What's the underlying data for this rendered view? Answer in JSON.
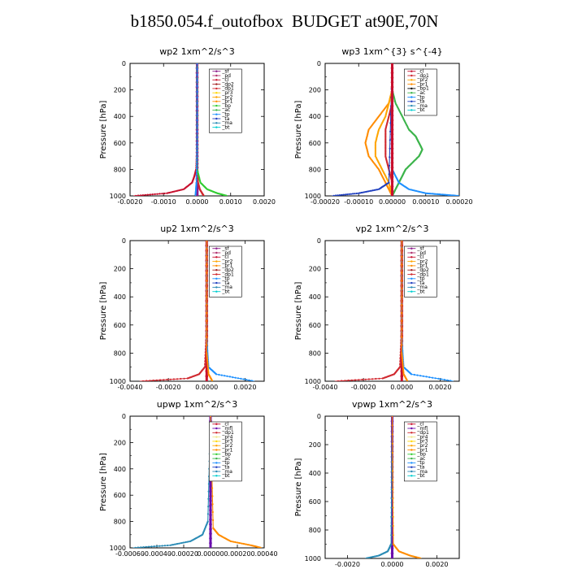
{
  "title": "b1850.054.f_outofbox  BUDGET at90E,70N",
  "colors": {
    "_sf": "#8b1a8b",
    "_pd": "#b0306e",
    "_cl": "#c8102e",
    "_dp1": "#d0282f",
    "_dp2": "#a32020",
    "_pr1": "#ff8c00",
    "_pr2": "#ffa500",
    "_pr3": "#ffd700",
    "_pr4": "#f0e68c",
    "_bp": "#32cd32",
    "_ac": "#3cb44b",
    "_tp": "#1e90ff",
    "_ta": "#1f3fbf",
    "_ma": "#2a8bb5",
    "_bt": "#00ced1",
    "_mfl": "#6a0dad"
  },
  "chart_data": [
    {
      "type": "line",
      "title": "wp2   1xm^2/s^3",
      "ylabel": "Pressure  [hPa]",
      "xlim": [
        -0.002,
        0.002
      ],
      "ylim": [
        1000,
        0
      ],
      "xticks": [
        -0.002,
        -0.001,
        0,
        0.001,
        0.002
      ],
      "xtick_labels": [
        "-0.0020",
        "-0.0010",
        "0.0000",
        "0.0010",
        "0.0020"
      ],
      "yticks": [
        0,
        200,
        400,
        600,
        800,
        1000
      ],
      "ytick_labels": [
        "0",
        "200",
        "400",
        "600",
        "800",
        "1000"
      ],
      "legend": [
        "_sf",
        "_pd",
        "_cl",
        "_dp2",
        "_dp1",
        "_pr3",
        "_pr2",
        "_pr1",
        "_bp",
        "_ac",
        "_tp",
        "_ta",
        "_ma",
        "_bt"
      ],
      "series": [
        {
          "name": "_sf",
          "p": [
            0,
            500,
            900,
            1000
          ],
          "x": [
            0,
            0,
            0,
            0
          ]
        },
        {
          "name": "_cl",
          "p": [
            0,
            200,
            400,
            600,
            800,
            850,
            900,
            950,
            980,
            1000
          ],
          "x": [
            0,
            0,
            0,
            0,
            -3e-05,
            -8e-05,
            -0.00015,
            -0.0004,
            -0.0009,
            -0.0019
          ]
        },
        {
          "name": "_dp1",
          "p": [
            0,
            400,
            800,
            900,
            950,
            980,
            1000
          ],
          "x": [
            0,
            0,
            0,
            3e-05,
            8e-05,
            0.00015,
            0.0002
          ]
        },
        {
          "name": "_bp",
          "p": [
            0,
            400,
            800,
            900,
            950,
            980,
            1000
          ],
          "x": [
            0,
            0,
            0,
            0.0001,
            0.0003,
            0.0006,
            0.0009
          ]
        },
        {
          "name": "_tp",
          "p": [
            0,
            600,
            900,
            1000
          ],
          "x": [
            0,
            0,
            -2e-05,
            -5e-05
          ]
        }
      ]
    },
    {
      "type": "line",
      "title": "wp3   1xm^{3} s^{-4}",
      "ylabel": "Pressure  [hPa]",
      "xlim": [
        -0.0002,
        0.0002
      ],
      "ylim": [
        1000,
        0
      ],
      "xticks": [
        -0.0002,
        -0.0001,
        0,
        0.0001,
        0.0002
      ],
      "xtick_labels": [
        "-0.00020",
        "-0.00010",
        "0.00000",
        "0.00010",
        "0.00020"
      ],
      "yticks": [
        0,
        200,
        400,
        600,
        800,
        1000
      ],
      "ytick_labels": [
        "0",
        "200",
        "400",
        "600",
        "800",
        "1000"
      ],
      "legend": [
        "_cl",
        "_dp1",
        "_pr2",
        "_pr1",
        "_bp1",
        "_ac",
        "_tp",
        "_ta",
        "_ma",
        "_bt"
      ],
      "series": [
        {
          "name": "_pr1",
          "p": [
            0,
            200,
            300,
            400,
            500,
            600,
            700,
            800,
            900,
            950,
            1000
          ],
          "x": [
            0,
            0,
            -1e-05,
            -4e-05,
            -7e-05,
            -8e-05,
            -7e-05,
            -4e-05,
            -2e-05,
            -1e-05,
            0
          ]
        },
        {
          "name": "_pr2",
          "p": [
            0,
            200,
            300,
            400,
            500,
            600,
            700,
            800,
            900,
            1000
          ],
          "x": [
            0,
            0,
            -1e-05,
            -2e-05,
            -4e-05,
            -5e-05,
            -5e-05,
            -3e-05,
            -1e-05,
            0
          ]
        },
        {
          "name": "_ac",
          "p": [
            0,
            200,
            300,
            400,
            500,
            550,
            600,
            650,
            700,
            750,
            800,
            850,
            900,
            950,
            1000
          ],
          "x": [
            0,
            0,
            1e-05,
            3e-05,
            5e-05,
            7e-05,
            8e-05,
            9e-05,
            8e-05,
            6e-05,
            4e-05,
            3e-05,
            2e-05,
            1e-05,
            0
          ]
        },
        {
          "name": "_dp1",
          "p": [
            0,
            300,
            400,
            500,
            600,
            700,
            800,
            900,
            1000
          ],
          "x": [
            0,
            0,
            -1e-05,
            -2e-05,
            -2e-05,
            -2e-05,
            -1e-05,
            0,
            0
          ]
        },
        {
          "name": "_tp",
          "p": [
            0,
            800,
            900,
            950,
            980,
            990,
            1000
          ],
          "x": [
            0,
            0,
            2e-05,
            5e-05,
            0.0001,
            0.00015,
            0.0002
          ]
        },
        {
          "name": "_ta",
          "p": [
            0,
            900,
            950,
            980,
            1000
          ],
          "x": [
            0,
            -1e-05,
            -4e-05,
            -0.0001,
            -0.00018
          ]
        },
        {
          "name": "_cl",
          "p": [
            0,
            500,
            1000
          ],
          "x": [
            0,
            0,
            0
          ]
        }
      ]
    },
    {
      "type": "line",
      "title": "up2   1xm^2/s^3",
      "ylabel": "Pressure  [hPa]",
      "xlim": [
        -0.004,
        0.003
      ],
      "ylim": [
        1000,
        0
      ],
      "xticks": [
        -0.004,
        -0.002,
        0,
        0.002
      ],
      "xtick_labels": [
        "-0.0040",
        "-0.0020",
        "0.0000",
        "0.0020"
      ],
      "yticks": [
        0,
        200,
        400,
        600,
        800,
        1000
      ],
      "ytick_labels": [
        "0",
        "200",
        "400",
        "600",
        "800",
        "1000"
      ],
      "legend": [
        "_sf",
        "_pd",
        "_cl",
        "_pr2",
        "_pr1",
        "_dp2",
        "_dp1",
        "_tp",
        "_ta",
        "_ma",
        "_bt"
      ],
      "series": [
        {
          "name": "_cl",
          "p": [
            0,
            500,
            1000
          ],
          "x": [
            0,
            0,
            0
          ]
        },
        {
          "name": "_dp1",
          "p": [
            0,
            600,
            900,
            950,
            980,
            1000
          ],
          "x": [
            0,
            0,
            -0.0001,
            -0.0004,
            -0.001,
            -0.0035
          ]
        },
        {
          "name": "_tp",
          "p": [
            0,
            700,
            900,
            950,
            1000
          ],
          "x": [
            0,
            0,
            0.0001,
            0.0005,
            0.0025
          ]
        },
        {
          "name": "_pr1",
          "p": [
            0,
            800,
            950,
            1000
          ],
          "x": [
            0,
            0,
            0.0001,
            0.0003
          ]
        }
      ]
    },
    {
      "type": "line",
      "title": "vp2   1xm^2/s^3",
      "ylabel": "Pressure  [hPa]",
      "xlim": [
        -0.004,
        0.003
      ],
      "ylim": [
        1000,
        0
      ],
      "xticks": [
        -0.004,
        -0.002,
        0,
        0.002
      ],
      "xtick_labels": [
        "-0.0040",
        "-0.0020",
        "0.0000",
        "0.0020"
      ],
      "yticks": [
        0,
        200,
        400,
        600,
        800,
        1000
      ],
      "ytick_labels": [
        "0",
        "200",
        "400",
        "600",
        "800",
        "1000"
      ],
      "legend": [
        "_sf",
        "_pd",
        "_cl",
        "_pr2",
        "_pr1",
        "_dp2",
        "_dp1",
        "_tp",
        "_ta",
        "_ma",
        "_bt"
      ],
      "series": [
        {
          "name": "_cl",
          "p": [
            0,
            500,
            1000
          ],
          "x": [
            0,
            0,
            0
          ]
        },
        {
          "name": "_dp1",
          "p": [
            0,
            600,
            900,
            950,
            980,
            1000
          ],
          "x": [
            0,
            0,
            -0.0001,
            -0.0004,
            -0.001,
            -0.0035
          ]
        },
        {
          "name": "_tp",
          "p": [
            0,
            700,
            900,
            950,
            1000
          ],
          "x": [
            0,
            0,
            0.0001,
            0.0005,
            0.0027
          ]
        },
        {
          "name": "_pr1",
          "p": [
            0,
            800,
            950,
            1000
          ],
          "x": [
            0,
            0,
            0.0001,
            0.0003
          ]
        }
      ]
    },
    {
      "type": "line",
      "title": "upwp   1xm^2/s^3",
      "ylabel": "Pressure  [hPa]",
      "xlim": [
        -0.0006,
        0.0004
      ],
      "ylim": [
        1000,
        0
      ],
      "xticks": [
        -0.0006,
        -0.0004,
        -0.0002,
        0,
        0.0002,
        0.0004
      ],
      "xtick_labels": [
        "-0.00060",
        "-0.00040",
        "-0.00020",
        "0.00000",
        "0.00020",
        "0.00040"
      ],
      "yticks": [
        0,
        200,
        400,
        600,
        800,
        1000
      ],
      "ytick_labels": [
        "0",
        "200",
        "400",
        "600",
        "800",
        "1000"
      ],
      "legend": [
        "_cl",
        "_mfl",
        "_dp1",
        "_pr4",
        "_pr3",
        "_pr2",
        "_pr1",
        "_bp",
        "_ac",
        "_tp",
        "_ta",
        "_ma",
        "_bt"
      ],
      "series": [
        {
          "name": "_mfl",
          "p": [
            0,
            500,
            1000
          ],
          "x": [
            0,
            0,
            0
          ]
        },
        {
          "name": "_ma",
          "p": [
            0,
            800,
            900,
            950,
            980,
            1000
          ],
          "x": [
            0,
            -2e-05,
            -6e-05,
            -0.00015,
            -0.0003,
            -0.00058
          ]
        },
        {
          "name": "_pr1",
          "p": [
            0,
            850,
            900,
            950,
            980,
            1000
          ],
          "x": [
            0,
            2e-05,
            6e-05,
            0.00015,
            0.0003,
            0.00038
          ]
        }
      ]
    },
    {
      "type": "line",
      "title": "vpwp   1xm^2/s^3",
      "ylabel": "Pressure  [hPa]",
      "xlim": [
        -0.003,
        0.003
      ],
      "ylim": [
        1000,
        0
      ],
      "xticks": [
        -0.002,
        0,
        0.002
      ],
      "xtick_labels": [
        "-0.0020",
        "0.0000",
        "0.0020"
      ],
      "yticks": [
        0,
        200,
        400,
        600,
        800,
        1000
      ],
      "ytick_labels": [
        "0",
        "200",
        "400",
        "600",
        "800",
        "1000"
      ],
      "legend": [
        "_cl",
        "_mfl",
        "_dp1",
        "_pr4",
        "_pr3",
        "_pr2",
        "_pr1",
        "_bp",
        "_ac",
        "_tp",
        "_ta",
        "_ma",
        "_bt"
      ],
      "series": [
        {
          "name": "_mfl",
          "p": [
            0,
            500,
            1000
          ],
          "x": [
            0,
            0,
            0
          ]
        },
        {
          "name": "_ma",
          "p": [
            0,
            900,
            950,
            980,
            1000
          ],
          "x": [
            0,
            -5e-05,
            -0.0002,
            -0.0006,
            -0.0012
          ]
        },
        {
          "name": "_pr1",
          "p": [
            0,
            900,
            950,
            980,
            1000
          ],
          "x": [
            0,
            5e-05,
            0.0003,
            0.0008,
            0.0013
          ]
        }
      ]
    }
  ]
}
